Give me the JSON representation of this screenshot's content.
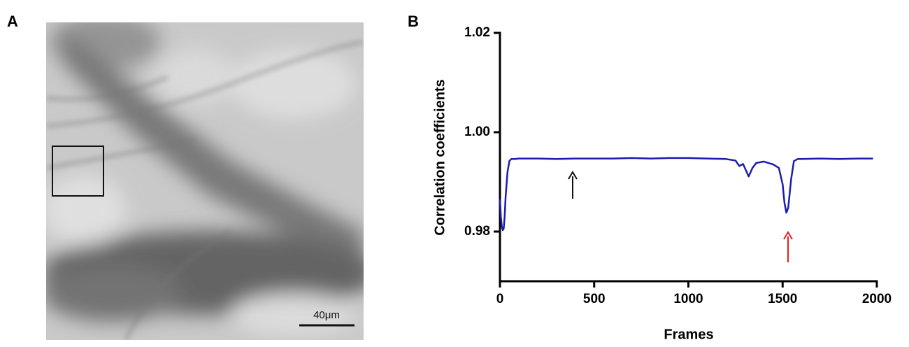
{
  "panels": {
    "a_label": "A",
    "b_label": "B",
    "scale_bar_label": "40μm"
  },
  "chart_data": {
    "type": "line",
    "x_label": "Frames",
    "y_label": "Correlation coefficients",
    "x": [
      0,
      5,
      10,
      15,
      20,
      25,
      30,
      40,
      50,
      60,
      80,
      100,
      200,
      300,
      400,
      500,
      600,
      700,
      800,
      900,
      1000,
      1100,
      1200,
      1250,
      1270,
      1290,
      1300,
      1320,
      1340,
      1360,
      1400,
      1450,
      1480,
      1500,
      1510,
      1520,
      1530,
      1545,
      1560,
      1580,
      1600,
      1700,
      1800,
      1900,
      1980
    ],
    "series": [
      {
        "color": "#1c1cb0",
        "values": [
          0.9865,
          0.983,
          0.981,
          0.9803,
          0.9806,
          0.983,
          0.987,
          0.992,
          0.9942,
          0.9946,
          0.9946,
          0.9947,
          0.9947,
          0.9946,
          0.9947,
          0.9947,
          0.9947,
          0.9948,
          0.9947,
          0.9948,
          0.9948,
          0.9947,
          0.9946,
          0.9943,
          0.9932,
          0.9936,
          0.9928,
          0.9911,
          0.9928,
          0.9938,
          0.9941,
          0.9935,
          0.9928,
          0.9895,
          0.9858,
          0.9838,
          0.9848,
          0.9905,
          0.9942,
          0.9946,
          0.9946,
          0.9947,
          0.9946,
          0.9947,
          0.9947
        ]
      }
    ],
    "xlim": [
      0,
      2000
    ],
    "xticks": [
      0,
      500,
      1000,
      1500,
      2000
    ],
    "ylim": [
      0.97,
      1.02
    ],
    "yticks": [
      0.98,
      {
        "value": 1.0,
        "label": "1.00"
      },
      1.02
    ]
  }
}
